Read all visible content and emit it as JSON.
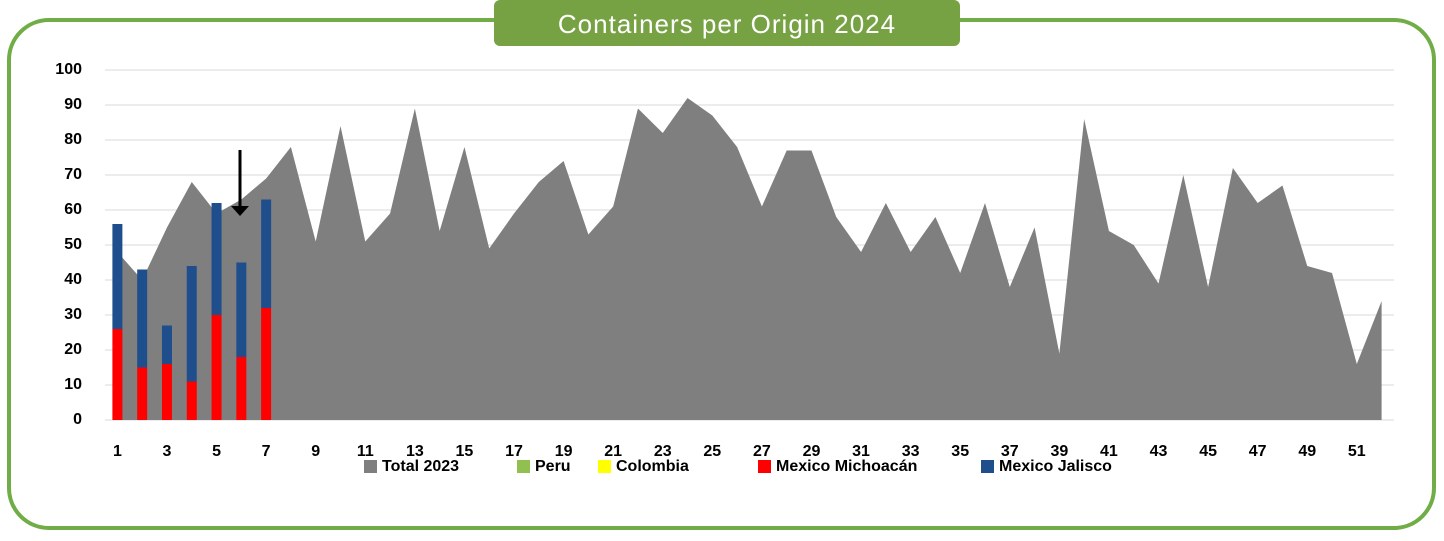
{
  "chart_data": {
    "type": "bar",
    "title": "Containers per Origin 2024",
    "categories": [
      "1",
      null,
      "3",
      null,
      "5",
      null,
      "7",
      null,
      "9",
      null,
      "11",
      null,
      "13",
      null,
      "15",
      null,
      "17",
      null,
      "19",
      null,
      "21",
      null,
      "23",
      null,
      "25",
      null,
      "27",
      null,
      "29",
      null,
      "31",
      null,
      "33",
      null,
      "35",
      null,
      "37",
      null,
      "39",
      null,
      "41",
      null,
      "43",
      null,
      "45",
      null,
      "47",
      null,
      "49",
      null,
      "51",
      null
    ],
    "ylim": [
      0,
      100
    ],
    "yticks": [
      0,
      10,
      20,
      30,
      40,
      50,
      60,
      70,
      80,
      90,
      100
    ],
    "grid": true,
    "series": [
      {
        "name": "Total 2023",
        "color": "#7f7f7f",
        "kind": "area",
        "values": [
          48,
          40,
          55,
          68,
          59,
          63,
          69,
          78,
          51,
          84,
          51,
          59,
          89,
          54,
          78,
          49,
          59,
          68,
          74,
          53,
          61,
          89,
          82,
          92,
          87,
          78,
          61,
          77,
          77,
          58,
          48,
          62,
          48,
          58,
          42,
          62,
          38,
          55,
          19,
          86,
          54,
          50,
          39,
          70,
          38,
          72,
          62,
          67,
          44,
          42,
          16,
          34
        ]
      },
      {
        "name": "Peru",
        "color": "#92c050",
        "kind": "stack",
        "values": [
          null,
          null,
          null,
          null,
          null,
          null,
          null,
          null,
          null,
          null,
          null,
          null,
          null,
          null,
          null,
          null,
          null,
          null,
          null,
          null,
          null,
          null,
          null,
          null,
          null,
          null,
          null,
          null,
          null,
          null,
          null,
          null,
          null,
          null,
          null,
          null,
          null,
          null,
          null,
          null,
          null,
          null,
          null,
          null,
          null,
          null,
          null,
          null,
          null,
          null,
          null,
          null
        ]
      },
      {
        "name": "Colombia",
        "color": "#ffff00",
        "kind": "stack",
        "values": [
          null,
          null,
          null,
          null,
          null,
          null,
          null,
          null,
          null,
          null,
          null,
          null,
          null,
          null,
          null,
          null,
          null,
          null,
          null,
          null,
          null,
          null,
          null,
          null,
          null,
          null,
          null,
          null,
          null,
          null,
          null,
          null,
          null,
          null,
          null,
          null,
          null,
          null,
          null,
          null,
          null,
          null,
          null,
          null,
          null,
          null,
          null,
          null,
          null,
          null,
          null,
          null
        ]
      },
      {
        "name": "Mexico Michoacán",
        "color": "#ff0000",
        "kind": "stack",
        "values": [
          26,
          15,
          16,
          11,
          30,
          18,
          32,
          null,
          null,
          null,
          null,
          null,
          null,
          null,
          null,
          null,
          null,
          null,
          null,
          null,
          null,
          null,
          null,
          null,
          null,
          null,
          null,
          null,
          null,
          null,
          null,
          null,
          null,
          null,
          null,
          null,
          null,
          null,
          null,
          null,
          null,
          null,
          null,
          null,
          null,
          null,
          null,
          null,
          null,
          null,
          null,
          null
        ]
      },
      {
        "name": "Mexico Jalisco",
        "color": "#1f4e8c",
        "kind": "stack",
        "values": [
          30,
          28,
          11,
          33,
          32,
          27,
          31,
          null,
          null,
          null,
          null,
          null,
          null,
          null,
          null,
          null,
          null,
          null,
          null,
          null,
          null,
          null,
          null,
          null,
          null,
          null,
          null,
          null,
          null,
          null,
          null,
          null,
          null,
          null,
          null,
          null,
          null,
          null,
          null,
          null,
          null,
          null,
          null,
          null,
          null,
          null,
          null,
          null,
          null,
          null,
          null,
          null
        ]
      }
    ]
  }
}
